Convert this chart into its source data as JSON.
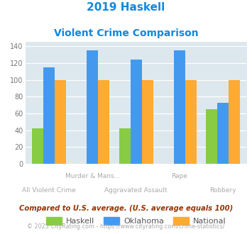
{
  "title_line1": "2019 Haskell",
  "title_line2": "Violent Crime Comparison",
  "categories": [
    "All Violent Crime",
    "Murder & Mans...",
    "Aggravated Assault",
    "Rape",
    "Robbery"
  ],
  "cat_labels_row1": [
    "",
    "Murder & Mans...",
    "",
    "Rape",
    ""
  ],
  "cat_labels_row2": [
    "All Violent Crime",
    "",
    "Aggravated Assault",
    "",
    "Robbery"
  ],
  "haskell": [
    42,
    0,
    42,
    0,
    65
  ],
  "oklahoma": [
    115,
    135,
    124,
    135,
    73
  ],
  "national": [
    100,
    100,
    100,
    100,
    100
  ],
  "haskell_color": "#88cc44",
  "oklahoma_color": "#4499ee",
  "national_color": "#ffaa33",
  "ylim": [
    0,
    145
  ],
  "yticks": [
    0,
    20,
    40,
    60,
    80,
    100,
    120,
    140
  ],
  "title_color": "#1188dd",
  "legend_labels": [
    "Haskell",
    "Oklahoma",
    "National"
  ],
  "legend_text_color": "#555555",
  "footnote1": "Compared to U.S. average. (U.S. average equals 100)",
  "footnote2": "© 2025 CityRating.com - https://www.cityrating.com/crime-statistics/",
  "footnote1_color": "#993300",
  "footnote2_color": "#aaaaaa",
  "bg_color": "#dde8ee",
  "xtick_color": "#aaaaaa",
  "ytick_color": "#777777",
  "grid_color": "#ffffff"
}
